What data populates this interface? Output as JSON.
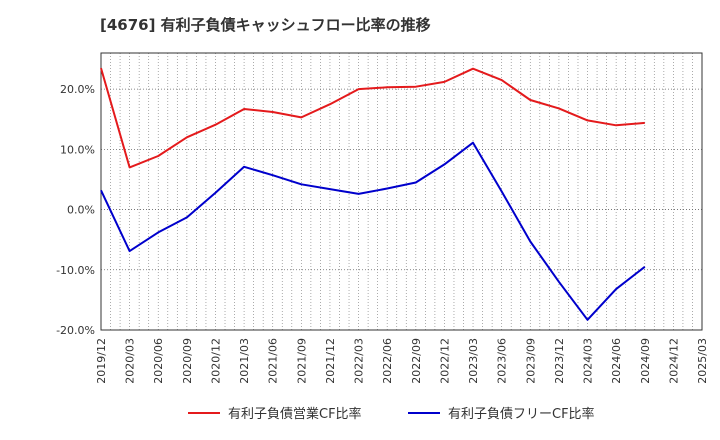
{
  "chart_data": {
    "type": "line",
    "title": "[4676]  有利子負債キャッシュフロー比率の推移",
    "x": [
      "2019/12",
      "2020/03",
      "2020/06",
      "2020/09",
      "2020/12",
      "2021/03",
      "2021/06",
      "2021/09",
      "2021/12",
      "2022/03",
      "2022/06",
      "2022/09",
      "2022/12",
      "2023/03",
      "2023/06",
      "2023/09",
      "2023/12",
      "2024/03",
      "2024/06",
      "2024/09",
      "2024/12",
      "2025/03"
    ],
    "ylim": [
      -20,
      26
    ],
    "yticks": [
      20,
      10,
      0,
      -10,
      -20
    ],
    "ytick_labels": [
      "20.0%",
      "10.0%",
      "0.0%",
      "-10.0%",
      "-20.0%"
    ],
    "grid": true,
    "legend_position": "bottom",
    "series": [
      {
        "name": "有利子負債営業CF比率",
        "color": "#e41a1c",
        "values": [
          23.5,
          7.0,
          8.9,
          12.0,
          14.1,
          16.7,
          16.2,
          15.3,
          17.5,
          20.0,
          20.3,
          20.4,
          21.2,
          23.4,
          21.5,
          18.2,
          16.8,
          14.8,
          14.0,
          14.4,
          null,
          null
        ]
      },
      {
        "name": "有利子負債フリーCF比率",
        "color": "#0000cc",
        "values": [
          3.2,
          -6.9,
          -3.8,
          -1.3,
          2.8,
          7.1,
          5.7,
          4.2,
          3.4,
          2.6,
          3.5,
          4.5,
          7.5,
          11.1,
          3.0,
          -5.3,
          -12.0,
          -18.3,
          -13.2,
          -9.5,
          null,
          null
        ]
      }
    ]
  }
}
